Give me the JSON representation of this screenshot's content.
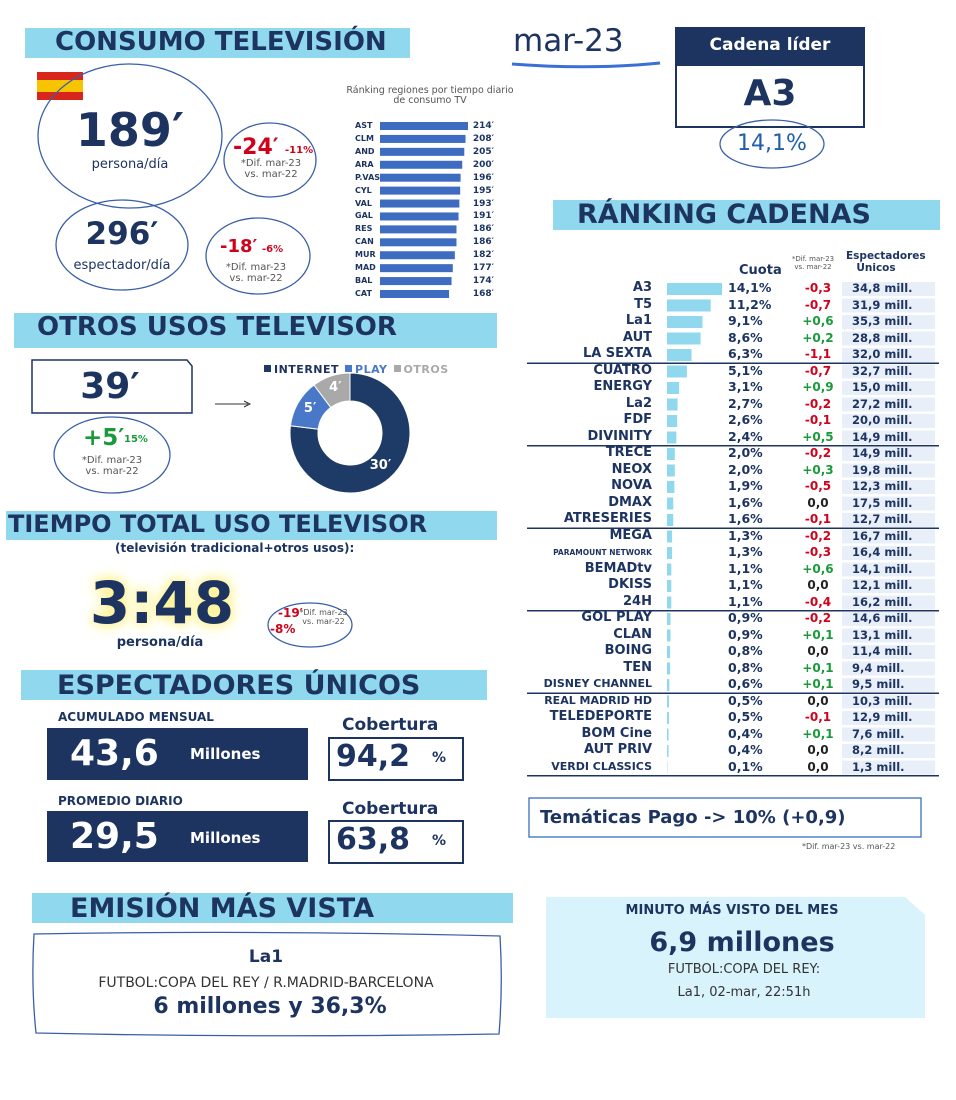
{
  "header": {
    "title": "CONSUMO TELEVISIÓN",
    "period": "mar-23"
  },
  "leader": {
    "label": "Cadena líder",
    "channel": "A3",
    "share": "14,1%"
  },
  "consumption": {
    "per_person": {
      "minutes": "189′",
      "unit": "persona/día",
      "diff": "-24′",
      "diff_pct": "-11%",
      "note": "*Dif. mar-23 vs. mar-22"
    },
    "per_viewer": {
      "minutes": "296′",
      "unit": "espectador/día",
      "diff": "-18′",
      "diff_pct": "-6%",
      "note": "*Dif. mar-23 vs. mar-22"
    }
  },
  "regions": {
    "title": "Ránking regiones por tiempo diario de consumo TV",
    "color": "#3d6cc0",
    "categories": [
      "AST",
      "CLM",
      "AND",
      "ARA",
      "P.VAS",
      "CYL",
      "VAL",
      "GAL",
      "RES",
      "CAN",
      "MUR",
      "MAD",
      "BAL",
      "CAT"
    ],
    "values": [
      214,
      208,
      205,
      200,
      196,
      195,
      193,
      191,
      186,
      186,
      182,
      177,
      174,
      168
    ],
    "value_labels": [
      "214′",
      "208′",
      "205′",
      "200′",
      "196′",
      "195′",
      "193′",
      "191′",
      "186′",
      "186′",
      "182′",
      "177′",
      "174′",
      "168′"
    ]
  },
  "other_uses": {
    "title": "OTROS USOS TELEVISOR",
    "minutes": "39′",
    "diff": "+5′",
    "diff_pct": "15%",
    "note": "*Dif. mar-23 vs. mar-22",
    "donut": {
      "series": [
        {
          "name": "INTERNET",
          "color": "#1e3a66",
          "value": 30,
          "value_label": "30′"
        },
        {
          "name": "PLAY",
          "color": "#4a78c8",
          "value": 5,
          "value_label": "5′"
        },
        {
          "name": "OTROS",
          "color": "#a9a9a9",
          "value": 4,
          "value_label": "4′"
        }
      ]
    }
  },
  "total_use": {
    "title": "TIEMPO TOTAL USO TELEVISOR",
    "subtitle": "(televisión tradicional+otros usos):",
    "time": "3:48",
    "unit": "persona/día",
    "diff": "-19′",
    "diff_pct": "-8%",
    "note": "*Dif. mar-23 vs. mar-22"
  },
  "unique_viewers": {
    "title": "ESPECTADORES ÚNICOS",
    "monthly": {
      "label": "ACUMULADO MENSUAL",
      "value": "43,6",
      "unit": "Millones",
      "coverage_label": "Cobertura",
      "coverage": "94,2",
      "coverage_unit": "%"
    },
    "daily": {
      "label": "PROMEDIO DIARIO",
      "value": "29,5",
      "unit": "Millones",
      "coverage_label": "Cobertura",
      "coverage": "63,8",
      "coverage_unit": "%"
    }
  },
  "top_broadcast": {
    "title": "EMISIÓN MÁS VISTA",
    "channel": "La1",
    "program": "FUTBOL:COPA DEL REY / R.MADRID-BARCELONA",
    "audience": "6 millones y 36,3%"
  },
  "top_minute": {
    "title": "MINUTO MÁS VISTO DEL MES",
    "audience": "6,9 millones",
    "program": "FUTBOL:COPA DEL REY:",
    "when": "La1, 02-mar, 22:51h"
  },
  "channels": {
    "title": "RÁNKING CADENAS",
    "share_header": "Cuota",
    "diff_header": "*Dif. mar-23 vs. mar-22",
    "viewers_header": "Espectadores Únicos",
    "color": "#8fd8ee",
    "names": [
      "A3",
      "T5",
      "La1",
      "AUT",
      "LA SEXTA",
      "CUATRO",
      "ENERGY",
      "La2",
      "FDF",
      "DIVINITY",
      "TRECE",
      "NEOX",
      "NOVA",
      "DMAX",
      "ATRESERIES",
      "MEGA",
      "PARAMOUNT NETWORK",
      "BEMADtv",
      "DKISS",
      "24H",
      "GOL PLAY",
      "CLAN",
      "BOING",
      "TEN",
      "DISNEY CHANNEL",
      "REAL MADRID HD",
      "TELEDEPORTE",
      "BOM Cine",
      "AUT PRIV",
      "VERDI CLASSICS"
    ],
    "share": [
      14.1,
      11.2,
      9.1,
      8.6,
      6.3,
      5.1,
      3.1,
      2.7,
      2.6,
      2.4,
      2.0,
      2.0,
      1.9,
      1.6,
      1.6,
      1.3,
      1.3,
      1.1,
      1.1,
      1.1,
      0.9,
      0.9,
      0.8,
      0.8,
      0.6,
      0.5,
      0.5,
      0.4,
      0.4,
      0.1
    ],
    "share_labels": [
      "14,1%",
      "11,2%",
      "9,1%",
      "8,6%",
      "6,3%",
      "5,1%",
      "3,1%",
      "2,7%",
      "2,6%",
      "2,4%",
      "2,0%",
      "2,0%",
      "1,9%",
      "1,6%",
      "1,6%",
      "1,3%",
      "1,3%",
      "1,1%",
      "1,1%",
      "1,1%",
      "0,9%",
      "0,9%",
      "0,8%",
      "0,8%",
      "0,6%",
      "0,5%",
      "0,5%",
      "0,4%",
      "0,4%",
      "0,1%"
    ],
    "diff": [
      "-0,3",
      "-0,7",
      "+0,6",
      "+0,2",
      "-1,1",
      "-0,7",
      "+0,9",
      "-0,2",
      "-0,1",
      "+0,5",
      "-0,2",
      "+0,3",
      "-0,5",
      "0,0",
      "-0,1",
      "-0,2",
      "-0,3",
      "+0,6",
      "0,0",
      "-0,4",
      "-0,2",
      "+0,1",
      "0,0",
      "+0,1",
      "+0,1",
      "0,0",
      "-0,1",
      "+0,1",
      "0,0",
      "0,0"
    ],
    "viewers": [
      "34,8 mill.",
      "31,9 mill.",
      "35,3 mill.",
      "28,8 mill.",
      "32,0 mill.",
      "32,7 mill.",
      "15,0 mill.",
      "27,2 mill.",
      "20,0 mill.",
      "14,9 mill.",
      "14,9 mill.",
      "19,8 mill.",
      "12,3 mill.",
      "17,5 mill.",
      "12,7 mill.",
      "16,7 mill.",
      "16,4 mill.",
      "14,1 mill.",
      "12,1 mill.",
      "16,2 mill.",
      "14,6 mill.",
      "13,1 mill.",
      "11,4 mill.",
      "9,4 mill.",
      "9,5 mill.",
      "10,3 mill.",
      "12,9 mill.",
      "7,6 mill.",
      "8,2 mill.",
      "1,3 mill."
    ],
    "pay_themes": "Temáticas Pago -> 10% (+0,9)",
    "note": "*Dif. mar-23 vs. mar-22"
  }
}
